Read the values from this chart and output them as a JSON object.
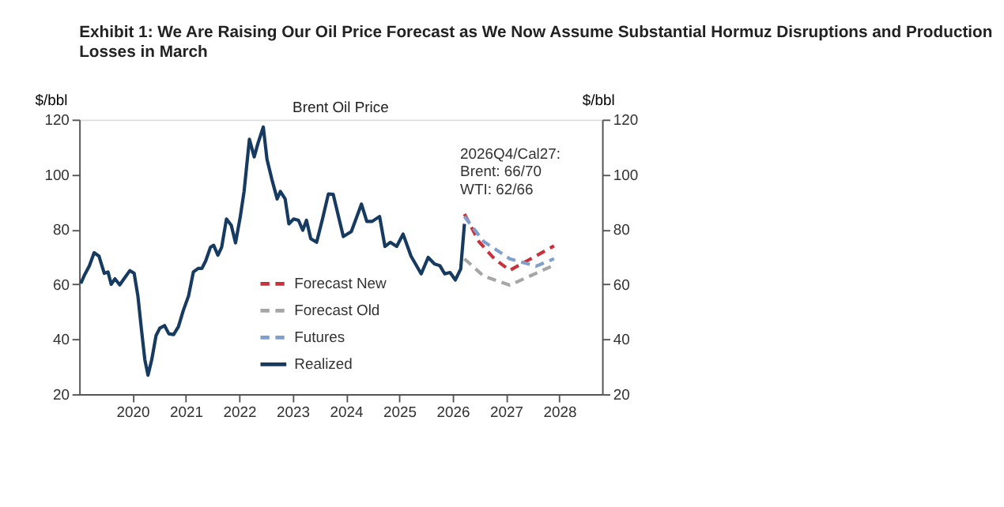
{
  "chart_data": {
    "type": "line",
    "title": "Exhibit 1: We Are Raising Our Oil Price Forecast as We Now Assume Substantial Hormuz Disruptions and Production Losses in March",
    "subtitle": "Brent Oil Price",
    "ylabel": "$/bbl",
    "y2label": "$/bbl",
    "xlim": [
      2019.0,
      2028.8
    ],
    "xticks": [
      2020,
      2021,
      2022,
      2023,
      2024,
      2025,
      2026,
      2027,
      2028
    ],
    "ylim": [
      20,
      120
    ],
    "yticks": [
      20,
      40,
      60,
      80,
      100,
      120
    ],
    "y2lim": [
      20,
      120
    ],
    "y2ticks": [
      20,
      40,
      60,
      80,
      100,
      120
    ],
    "grid": false,
    "legend": "bottom",
    "marker": "none",
    "annotations": [
      "2026Q4/Cal27:\nBrent: 66/70\nWTI: 62/66"
    ],
    "series": [
      {
        "name": "Forecast New",
        "color": "#c8323c",
        "line_style": "dashed",
        "x": [
          2026.22,
          2026.49,
          2026.78,
          2027.07,
          2027.9
        ],
        "values": [
          85.6,
          75.6,
          69.3,
          65.1,
          74
        ]
      },
      {
        "name": "Forecast Old",
        "color": "#a6a6a6",
        "line_style": "dashed",
        "x": [
          2026.22,
          2026.58,
          2027.07,
          2027.9
        ],
        "values": [
          69.3,
          63,
          59.7,
          67
        ]
      },
      {
        "name": "Futures",
        "color": "#7fa0cc",
        "line_style": "dashed",
        "x": [
          2026.22,
          2026.58,
          2027.07,
          2027.56,
          2027.9
        ],
        "values": [
          84.7,
          75.6,
          69.3,
          66.6,
          69.3
        ]
      },
      {
        "name": "Realized",
        "color": "#163a60",
        "line_style": "solid",
        "x": [
          2019.03,
          2019.1,
          2019.19,
          2019.28,
          2019.37,
          2019.47,
          2019.54,
          2019.6,
          2019.67,
          2019.76,
          2019.84,
          2019.95,
          2020.03,
          2020.1,
          2020.17,
          2020.23,
          2020.29,
          2020.36,
          2020.44,
          2020.51,
          2020.6,
          2020.68,
          2020.77,
          2020.86,
          2020.95,
          2021.05,
          2021.14,
          2021.23,
          2021.3,
          2021.37,
          2021.46,
          2021.52,
          2021.6,
          2021.67,
          2021.76,
          2021.85,
          2021.93,
          2022.02,
          2022.09,
          2022.19,
          2022.28,
          2022.35,
          2022.45,
          2022.52,
          2022.61,
          2022.71,
          2022.77,
          2022.86,
          2022.93,
          2023.02,
          2023.11,
          2023.19,
          2023.26,
          2023.34,
          2023.45,
          2023.56,
          2023.67,
          2023.76,
          2023.95,
          2024.1,
          2024.29,
          2024.39,
          2024.49,
          2024.63,
          2024.73,
          2024.83,
          2024.95,
          2025.07,
          2025.22,
          2025.41,
          2025.54,
          2025.66,
          2025.76,
          2025.85,
          2025.95,
          2026.05,
          2026.15,
          2026.22
        ],
        "values": [
          60.3,
          63.4,
          66.7,
          71.5,
          70.3,
          64,
          64.5,
          60,
          62,
          59.8,
          62,
          65,
          64,
          55.8,
          43,
          32.6,
          26.9,
          32.6,
          41.3,
          44,
          45,
          42,
          41.7,
          44.6,
          50.4,
          55.8,
          64.5,
          65.8,
          65.8,
          68.5,
          73.5,
          74.2,
          70.6,
          73.5,
          83.8,
          81.5,
          75.1,
          84.7,
          93.8,
          112.8,
          106.4,
          111.3,
          117.3,
          105.5,
          98.3,
          91.1,
          93.8,
          91.1,
          82,
          83.8,
          83.3,
          79.7,
          83.3,
          76.6,
          75.3,
          83.8,
          92.9,
          92.8,
          77.4,
          79.2,
          89.2,
          82.9,
          82.9,
          84.7,
          73.8,
          75.3,
          73.8,
          78.3,
          70.2,
          63.8,
          69.8,
          67.4,
          66.8,
          63.8,
          64.3,
          61.6,
          65.6,
          82
        ]
      }
    ]
  }
}
